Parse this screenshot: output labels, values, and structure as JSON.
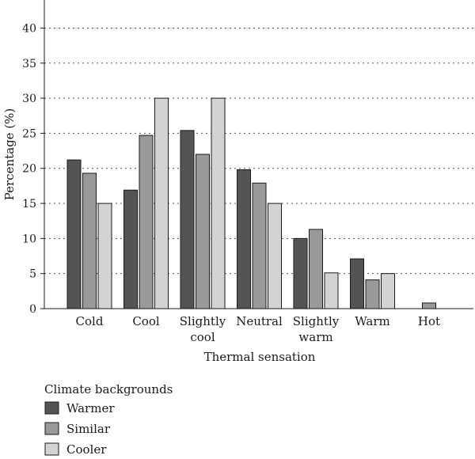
{
  "chart_data": {
    "type": "bar",
    "title": "",
    "xlabel": "Thermal sensation",
    "ylabel": "Percentage (%)",
    "ylim": [
      0,
      40
    ],
    "yticks": [
      0,
      5,
      10,
      15,
      20,
      25,
      30,
      35,
      40
    ],
    "grid": true,
    "legend_position": "bottom-left",
    "categories": [
      [
        "Cold"
      ],
      [
        "Cool"
      ],
      [
        "Slightly",
        "cool"
      ],
      [
        "Neutral"
      ],
      [
        "Slightly",
        "warm"
      ],
      [
        "Warm"
      ],
      [
        "Hot"
      ]
    ],
    "legend_title": "Climate backgrounds",
    "series": [
      {
        "name": "Warmer",
        "color": "#545454",
        "values": [
          21.2,
          16.9,
          25.4,
          19.8,
          10.0,
          7.1,
          0
        ]
      },
      {
        "name": "Similar",
        "color": "#999999",
        "values": [
          19.3,
          24.7,
          22.0,
          17.9,
          11.3,
          4.1,
          0.8
        ]
      },
      {
        "name": "Cooler",
        "color": "#d3d3d3",
        "values": [
          15.0,
          30.0,
          30.0,
          15.0,
          5.1,
          5.0,
          0
        ]
      }
    ]
  }
}
